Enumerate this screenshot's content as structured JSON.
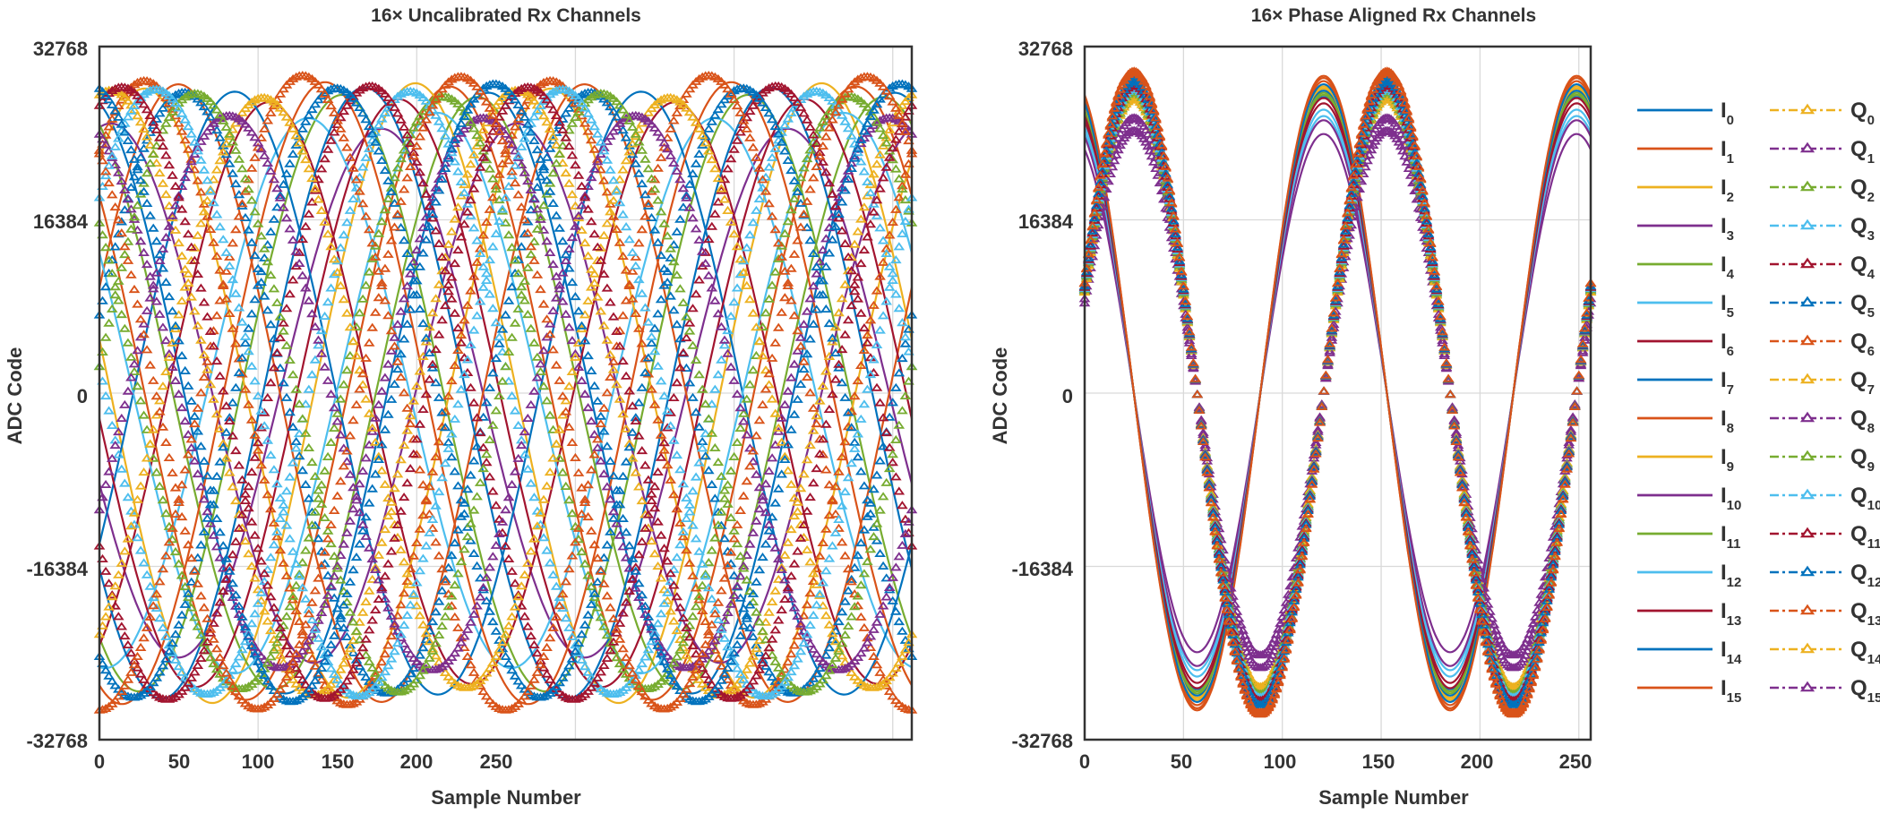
{
  "colors": [
    "#0072BD",
    "#D95319",
    "#EDB120",
    "#7E2F8E",
    "#77AC30",
    "#4DBEEE",
    "#A2142F"
  ],
  "chart_data": [
    {
      "type": "line",
      "title": "16× Uncalibrated Rx Channels",
      "xlabel": "Sample Number",
      "ylabel": "ADC Code",
      "xlim": [
        0,
        256
      ],
      "ylim": [
        -32768,
        32768
      ],
      "xticks": [
        0,
        50,
        100,
        150,
        200,
        250
      ],
      "yticks": [
        -32768,
        -16384,
        0,
        16384,
        32768
      ],
      "xtick_labels": [
        "0",
        "50",
        "100",
        "150",
        "200",
        "250"
      ],
      "ytick_labels": [
        "-32768",
        "-16384",
        "0",
        "16384",
        "32768"
      ],
      "grid": true,
      "period_samples": 128,
      "series": [
        {
          "name_base": "I",
          "name_sub": "0",
          "amplitude": 28400,
          "phase_deg": 105,
          "style": "solid"
        },
        {
          "name_base": "I",
          "name_sub": "1",
          "amplitude": 29000,
          "phase_deg": 140,
          "style": "solid"
        },
        {
          "name_base": "I",
          "name_sub": "2",
          "amplitude": 29300,
          "phase_deg": 170,
          "style": "solid"
        },
        {
          "name_base": "I",
          "name_sub": "3",
          "amplitude": 25000,
          "phase_deg": 200,
          "style": "solid"
        },
        {
          "name_base": "I",
          "name_sub": "4",
          "amplitude": 28200,
          "phase_deg": 235,
          "style": "solid"
        },
        {
          "name_base": "I",
          "name_sub": "5",
          "amplitude": 26000,
          "phase_deg": 265,
          "style": "solid"
        },
        {
          "name_base": "I",
          "name_sub": "6",
          "amplitude": 27500,
          "phase_deg": 300,
          "style": "solid"
        },
        {
          "name_base": "I",
          "name_sub": "7",
          "amplitude": 28500,
          "phase_deg": 330,
          "style": "solid"
        },
        {
          "name_base": "I",
          "name_sub": "8",
          "amplitude": 29200,
          "phase_deg": 20,
          "style": "solid"
        },
        {
          "name_base": "I",
          "name_sub": "9",
          "amplitude": 28800,
          "phase_deg": 50,
          "style": "solid"
        },
        {
          "name_base": "I",
          "name_sub": "10",
          "amplitude": 25500,
          "phase_deg": 80,
          "style": "solid"
        },
        {
          "name_base": "I",
          "name_sub": "11",
          "amplitude": 28000,
          "phase_deg": 115,
          "style": "solid"
        },
        {
          "name_base": "I",
          "name_sub": "12",
          "amplitude": 26500,
          "phase_deg": 150,
          "style": "solid"
        },
        {
          "name_base": "I",
          "name_sub": "13",
          "amplitude": 27800,
          "phase_deg": 185,
          "style": "solid"
        },
        {
          "name_base": "I",
          "name_sub": "14",
          "amplitude": 28900,
          "phase_deg": 215,
          "style": "solid"
        },
        {
          "name_base": "I",
          "name_sub": "15",
          "amplitude": 29400,
          "phase_deg": 250,
          "style": "solid"
        },
        {
          "name_base": "Q",
          "name_sub": "0",
          "amplitude": 28400,
          "phase_deg": 15,
          "style": "dashdot-triangle"
        },
        {
          "name_base": "Q",
          "name_sub": "1",
          "amplitude": 29500,
          "phase_deg": 50,
          "style": "dashdot-triangle"
        },
        {
          "name_base": "Q",
          "name_sub": "2",
          "amplitude": 28600,
          "phase_deg": 80,
          "style": "dashdot-triangle"
        },
        {
          "name_base": "Q",
          "name_sub": "3",
          "amplitude": 26000,
          "phase_deg": 110,
          "style": "dashdot-triangle"
        },
        {
          "name_base": "Q",
          "name_sub": "4",
          "amplitude": 28000,
          "phase_deg": 145,
          "style": "dashdot-triangle"
        },
        {
          "name_base": "Q",
          "name_sub": "5",
          "amplitude": 28500,
          "phase_deg": 175,
          "style": "dashdot-triangle"
        },
        {
          "name_base": "Q",
          "name_sub": "6",
          "amplitude": 29000,
          "phase_deg": 210,
          "style": "dashdot-triangle"
        },
        {
          "name_base": "Q",
          "name_sub": "7",
          "amplitude": 28800,
          "phase_deg": 240,
          "style": "dashdot-triangle"
        },
        {
          "name_base": "Q",
          "name_sub": "8",
          "amplitude": 30000,
          "phase_deg": 270,
          "style": "dashdot-triangle"
        },
        {
          "name_base": "Q",
          "name_sub": "9",
          "amplitude": 27900,
          "phase_deg": 305,
          "style": "dashdot-triangle"
        },
        {
          "name_base": "Q",
          "name_sub": "10",
          "amplitude": 26200,
          "phase_deg": 335,
          "style": "dashdot-triangle"
        },
        {
          "name_base": "Q",
          "name_sub": "11",
          "amplitude": 28300,
          "phase_deg": 5,
          "style": "dashdot-triangle"
        },
        {
          "name_base": "Q",
          "name_sub": "12",
          "amplitude": 28700,
          "phase_deg": 40,
          "style": "dashdot-triangle"
        },
        {
          "name_base": "Q",
          "name_sub": "13",
          "amplitude": 28900,
          "phase_deg": 70,
          "style": "dashdot-triangle"
        },
        {
          "name_base": "Q",
          "name_sub": "14",
          "amplitude": 29200,
          "phase_deg": 100,
          "style": "dashdot-triangle"
        },
        {
          "name_base": "Q",
          "name_sub": "15",
          "amplitude": 29900,
          "phase_deg": 130,
          "style": "dashdot-triangle"
        }
      ]
    },
    {
      "type": "line",
      "title": "16× Phase Aligned Rx Channels",
      "xlabel": "Sample Number",
      "ylabel": "ADC Code",
      "xlim": [
        0,
        256
      ],
      "ylim": [
        -32768,
        32768
      ],
      "xticks": [
        0,
        50,
        100,
        150,
        200,
        250
      ],
      "yticks": [
        -32768,
        -16384,
        0,
        16384,
        32768
      ],
      "xtick_labels": [
        "0",
        "50",
        "100",
        "150",
        "200",
        "250"
      ],
      "ytick_labels": [
        "-32768",
        "-16384",
        "0",
        "16384",
        "32768"
      ],
      "grid": true,
      "period_samples": 128,
      "legend_position": "right",
      "series": [
        {
          "name_base": "I",
          "name_sub": "0",
          "amplitude": 28000,
          "phase_deg": 110,
          "style": "solid"
        },
        {
          "name_base": "I",
          "name_sub": "1",
          "amplitude": 29800,
          "phase_deg": 110,
          "style": "solid"
        },
        {
          "name_base": "I",
          "name_sub": "2",
          "amplitude": 28800,
          "phase_deg": 110,
          "style": "solid"
        },
        {
          "name_base": "I",
          "name_sub": "3",
          "amplitude": 24500,
          "phase_deg": 110,
          "style": "solid"
        },
        {
          "name_base": "I",
          "name_sub": "4",
          "amplitude": 28200,
          "phase_deg": 110,
          "style": "solid"
        },
        {
          "name_base": "I",
          "name_sub": "5",
          "amplitude": 26200,
          "phase_deg": 110,
          "style": "solid"
        },
        {
          "name_base": "I",
          "name_sub": "6",
          "amplitude": 27400,
          "phase_deg": 110,
          "style": "solid"
        },
        {
          "name_base": "I",
          "name_sub": "7",
          "amplitude": 28600,
          "phase_deg": 110,
          "style": "solid"
        },
        {
          "name_base": "I",
          "name_sub": "8",
          "amplitude": 29500,
          "phase_deg": 110,
          "style": "solid"
        },
        {
          "name_base": "I",
          "name_sub": "9",
          "amplitude": 29000,
          "phase_deg": 110,
          "style": "solid"
        },
        {
          "name_base": "I",
          "name_sub": "10",
          "amplitude": 25800,
          "phase_deg": 110,
          "style": "solid"
        },
        {
          "name_base": "I",
          "name_sub": "11",
          "amplitude": 28400,
          "phase_deg": 110,
          "style": "solid"
        },
        {
          "name_base": "I",
          "name_sub": "12",
          "amplitude": 26800,
          "phase_deg": 110,
          "style": "solid"
        },
        {
          "name_base": "I",
          "name_sub": "13",
          "amplitude": 27900,
          "phase_deg": 110,
          "style": "solid"
        },
        {
          "name_base": "I",
          "name_sub": "14",
          "amplitude": 29200,
          "phase_deg": 110,
          "style": "solid"
        },
        {
          "name_base": "I",
          "name_sub": "15",
          "amplitude": 30000,
          "phase_deg": 110,
          "style": "solid"
        },
        {
          "name_base": "Q",
          "name_sub": "0",
          "amplitude": 28400,
          "phase_deg": 20,
          "style": "dashdot-triangle"
        },
        {
          "name_base": "Q",
          "name_sub": "1",
          "amplitude": 30200,
          "phase_deg": 20,
          "style": "dashdot-triangle"
        },
        {
          "name_base": "Q",
          "name_sub": "2",
          "amplitude": 28700,
          "phase_deg": 20,
          "style": "dashdot-triangle"
        },
        {
          "name_base": "Q",
          "name_sub": "3",
          "amplitude": 24800,
          "phase_deg": 20,
          "style": "dashdot-triangle"
        },
        {
          "name_base": "Q",
          "name_sub": "4",
          "amplitude": 28000,
          "phase_deg": 20,
          "style": "dashdot-triangle"
        },
        {
          "name_base": "Q",
          "name_sub": "5",
          "amplitude": 28900,
          "phase_deg": 20,
          "style": "dashdot-triangle"
        },
        {
          "name_base": "Q",
          "name_sub": "6",
          "amplitude": 29300,
          "phase_deg": 20,
          "style": "dashdot-triangle"
        },
        {
          "name_base": "Q",
          "name_sub": "7",
          "amplitude": 29000,
          "phase_deg": 20,
          "style": "dashdot-triangle"
        },
        {
          "name_base": "Q",
          "name_sub": "8",
          "amplitude": 30300,
          "phase_deg": 20,
          "style": "dashdot-triangle"
        },
        {
          "name_base": "Q",
          "name_sub": "9",
          "amplitude": 27800,
          "phase_deg": 20,
          "style": "dashdot-triangle"
        },
        {
          "name_base": "Q",
          "name_sub": "10",
          "amplitude": 26000,
          "phase_deg": 20,
          "style": "dashdot-triangle"
        },
        {
          "name_base": "Q",
          "name_sub": "11",
          "amplitude": 28500,
          "phase_deg": 20,
          "style": "dashdot-triangle"
        },
        {
          "name_base": "Q",
          "name_sub": "12",
          "amplitude": 28800,
          "phase_deg": 20,
          "style": "dashdot-triangle"
        },
        {
          "name_base": "Q",
          "name_sub": "13",
          "amplitude": 29100,
          "phase_deg": 20,
          "style": "dashdot-triangle"
        },
        {
          "name_base": "Q",
          "name_sub": "14",
          "amplitude": 29500,
          "phase_deg": 20,
          "style": "dashdot-triangle"
        },
        {
          "name_base": "Q",
          "name_sub": "15",
          "amplitude": 30400,
          "phase_deg": 20,
          "style": "dashdot-triangle"
        }
      ]
    }
  ]
}
